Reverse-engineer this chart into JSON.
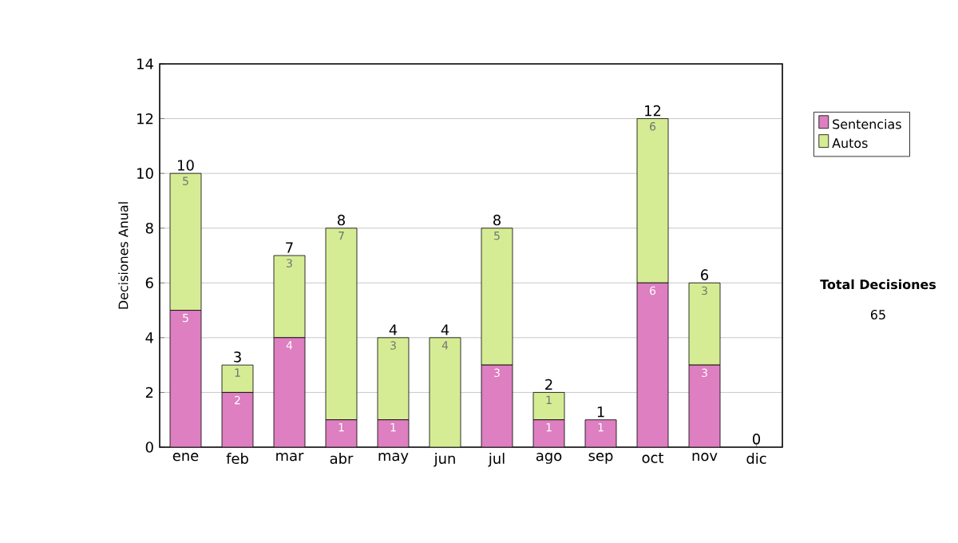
{
  "chart_data": {
    "type": "bar",
    "stacked": true,
    "ylabel": "Decisiones Anual",
    "categories": [
      "ene",
      "feb",
      "mar",
      "abr",
      "may",
      "jun",
      "jul",
      "ago",
      "sep",
      "oct",
      "nov",
      "dic"
    ],
    "series": [
      {
        "name": "Sentencias",
        "color": "#dd7fc0",
        "values": [
          5,
          2,
          4,
          1,
          1,
          0,
          3,
          1,
          1,
          6,
          3,
          0
        ],
        "value_labels": [
          "5",
          "2",
          "4",
          "1",
          "1",
          null,
          "3",
          "1",
          "1",
          "6",
          "3",
          null
        ]
      },
      {
        "name": "Autos",
        "color": "#d6ec94",
        "values": [
          5,
          1,
          3,
          7,
          3,
          4,
          5,
          1,
          0,
          6,
          3,
          0
        ],
        "value_labels": [
          "5",
          "1",
          "3",
          "7",
          "3",
          "4",
          "5",
          "1",
          null,
          "6",
          "3",
          null
        ]
      }
    ],
    "totals": [
      "10",
      "3",
      "7",
      "8",
      "4",
      "4",
      "8",
      "2",
      "1",
      "12",
      "6",
      "0"
    ],
    "ylim": [
      0,
      14
    ],
    "yticks": [
      0,
      2,
      4,
      6,
      8,
      10,
      12,
      14
    ],
    "grid": "y",
    "legend": "right",
    "annotations": [
      "Total Decisiones",
      "65"
    ]
  }
}
